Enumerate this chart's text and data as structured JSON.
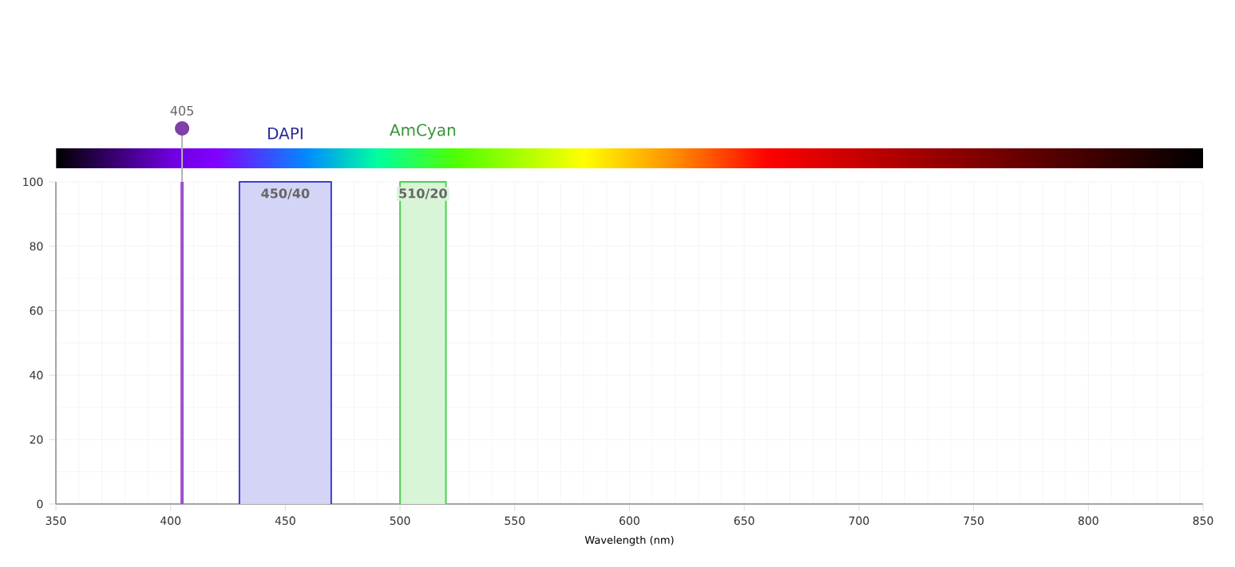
{
  "chart_data": {
    "type": "area",
    "xlabel": "Wavelength (nm)",
    "xlim": [
      350,
      850
    ],
    "xticks": [
      350,
      400,
      450,
      500,
      550,
      600,
      650,
      700,
      750,
      800,
      850
    ],
    "ylim": [
      0,
      100
    ],
    "yticks": [
      0,
      20,
      40,
      60,
      80,
      100
    ],
    "grid": true,
    "series": [
      {
        "name": "450/40",
        "color": "#3d3dd6",
        "x": [
          430,
          430,
          470,
          470
        ],
        "values": [
          0,
          100,
          100,
          0
        ]
      },
      {
        "name": "510/20",
        "color": "#4fd04f",
        "x": [
          500,
          500,
          520,
          520
        ],
        "values": [
          0,
          100,
          100,
          0
        ]
      }
    ],
    "ref_lines": [
      {
        "axis": "x",
        "value": 405,
        "label": "405",
        "color": "#a050d0"
      }
    ],
    "annotations": [
      "DAPI",
      "AmCyan"
    ]
  }
}
